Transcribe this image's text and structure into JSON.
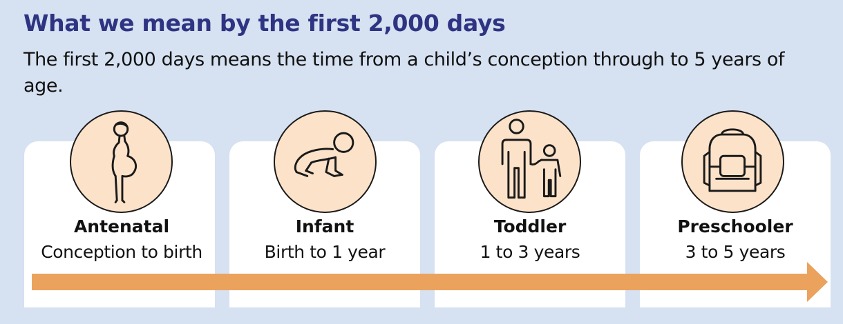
{
  "heading": "What we mean by the first 2,000 days",
  "description": "The first 2,000 days means the time from a child’s conception through to 5 years of age.",
  "stages": [
    {
      "name": "Antenatal",
      "range": "Conception to birth",
      "icon": "pregnant-woman-icon"
    },
    {
      "name": "Infant",
      "range": "Birth to 1 year",
      "icon": "crawling-baby-icon"
    },
    {
      "name": "Toddler",
      "range": "1 to 3 years",
      "icon": "adult-and-child-icon"
    },
    {
      "name": "Preschooler",
      "range": "3 to 5 years",
      "icon": "backpack-icon"
    }
  ],
  "colors": {
    "background": "#d6e1f1",
    "heading": "#2e3482",
    "card": "#ffffff",
    "icon_fill": "#fbe2c9",
    "arrow": "#eba25c"
  }
}
